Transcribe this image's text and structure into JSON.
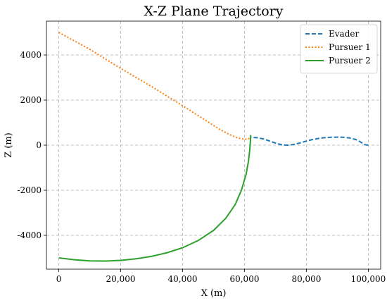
{
  "chart_data": {
    "type": "line",
    "title": "X-Z Plane Trajectory",
    "xlabel": "X (m)",
    "ylabel": "Z (m)",
    "xlim": [
      -4000,
      104000
    ],
    "ylim": [
      -5500,
      5500
    ],
    "xticks": [
      {
        "value": 0,
        "label": "0"
      },
      {
        "value": 20000,
        "label": "20,000"
      },
      {
        "value": 40000,
        "label": "40,000"
      },
      {
        "value": 60000,
        "label": "60,000"
      },
      {
        "value": 80000,
        "label": "80,000"
      },
      {
        "value": 100000,
        "label": "100,000"
      }
    ],
    "yticks": [
      {
        "value": -4000,
        "label": "-4000"
      },
      {
        "value": -2000,
        "label": "-2000"
      },
      {
        "value": 0,
        "label": "0"
      },
      {
        "value": 2000,
        "label": "2000"
      },
      {
        "value": 4000,
        "label": "4000"
      }
    ],
    "grid": true,
    "legend_position": "top-right",
    "series": [
      {
        "name": "Evader",
        "color": "#1f77b4",
        "dash": "6 3",
        "points": [
          [
            100000,
            0
          ],
          [
            99000,
            20
          ],
          [
            98000,
            100
          ],
          [
            97000,
            180
          ],
          [
            96000,
            250
          ],
          [
            94000,
            320
          ],
          [
            92000,
            350
          ],
          [
            90000,
            355
          ],
          [
            88000,
            350
          ],
          [
            86000,
            335
          ],
          [
            84000,
            300
          ],
          [
            82000,
            250
          ],
          [
            80000,
            180
          ],
          [
            78000,
            100
          ],
          [
            76000,
            30
          ],
          [
            74000,
            0
          ],
          [
            72000,
            15
          ],
          [
            70000,
            90
          ],
          [
            68000,
            190
          ],
          [
            66000,
            280
          ],
          [
            64000,
            330
          ],
          [
            62000,
            350
          ]
        ]
      },
      {
        "name": "Pursuer 1",
        "color": "#ff7f0e",
        "dash": "2 2.5",
        "points": [
          [
            0,
            5000
          ],
          [
            10000,
            4250
          ],
          [
            20000,
            3400
          ],
          [
            30000,
            2600
          ],
          [
            40000,
            1750
          ],
          [
            48000,
            1050
          ],
          [
            52000,
            700
          ],
          [
            55000,
            480
          ],
          [
            57000,
            360
          ],
          [
            59000,
            280
          ],
          [
            61000,
            260
          ],
          [
            62000,
            340
          ]
        ]
      },
      {
        "name": "Pursuer 2",
        "color": "#2ca02c",
        "dash": "",
        "points": [
          [
            0,
            -5000
          ],
          [
            5000,
            -5080
          ],
          [
            10000,
            -5130
          ],
          [
            15000,
            -5140
          ],
          [
            20000,
            -5110
          ],
          [
            25000,
            -5040
          ],
          [
            30000,
            -4930
          ],
          [
            35000,
            -4770
          ],
          [
            40000,
            -4550
          ],
          [
            45000,
            -4230
          ],
          [
            50000,
            -3780
          ],
          [
            54000,
            -3230
          ],
          [
            57000,
            -2630
          ],
          [
            59000,
            -2000
          ],
          [
            60500,
            -1300
          ],
          [
            61300,
            -700
          ],
          [
            61700,
            -200
          ],
          [
            61900,
            150
          ],
          [
            62000,
            450
          ]
        ]
      }
    ]
  }
}
